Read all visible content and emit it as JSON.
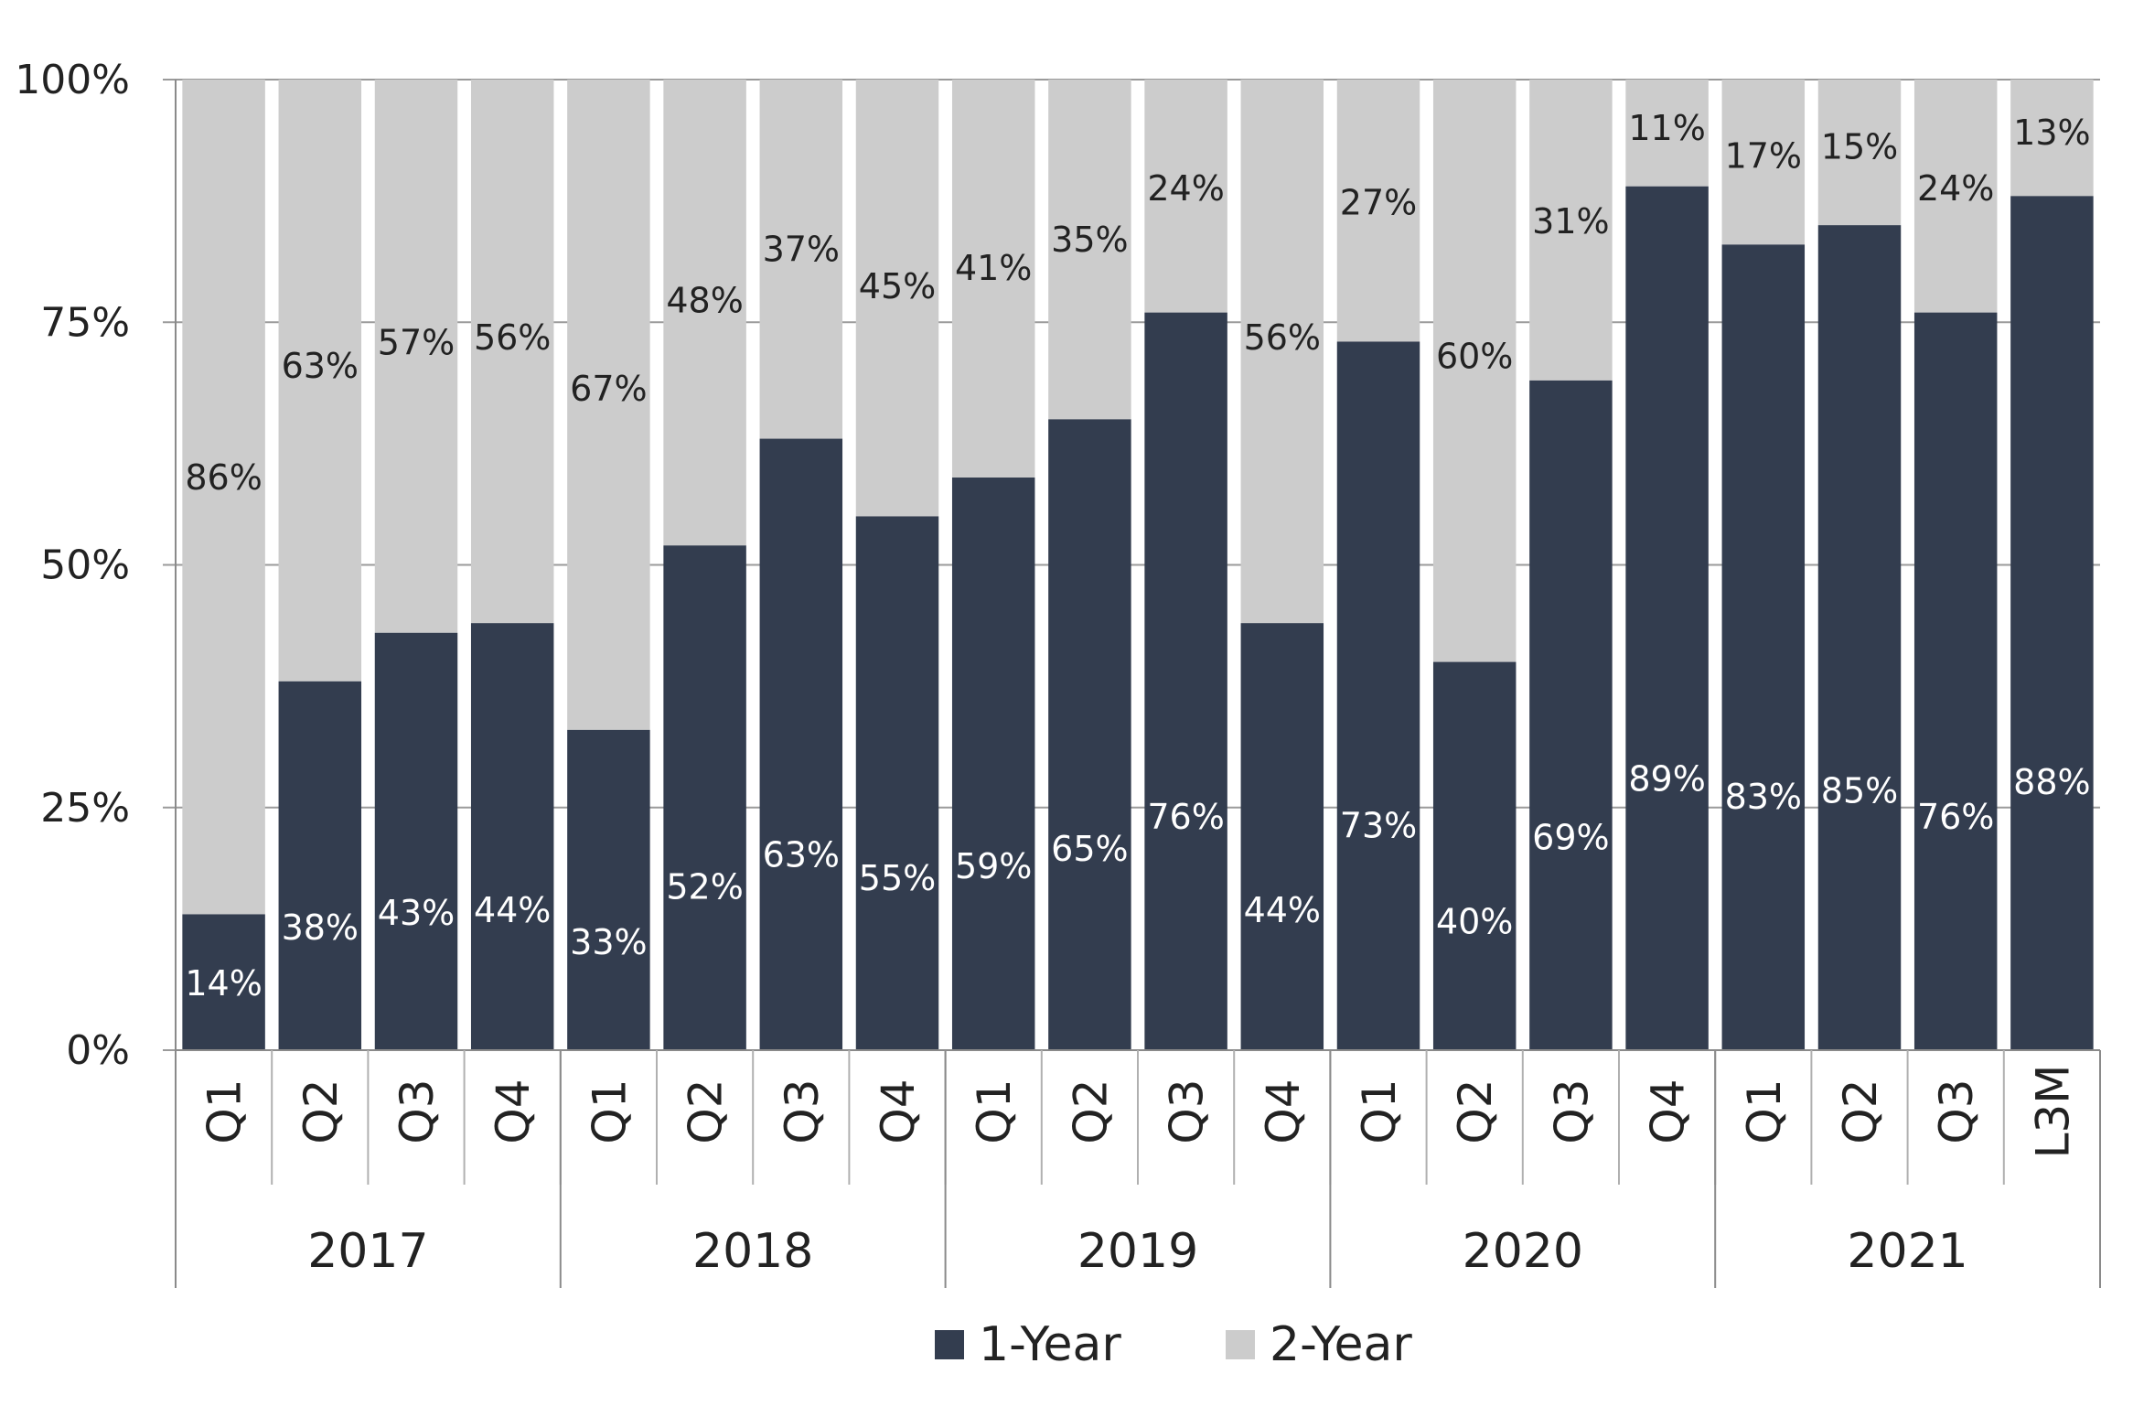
{
  "chart_data": {
    "type": "bar",
    "stacked": true,
    "percent": true,
    "categories": [
      "Q1",
      "Q2",
      "Q3",
      "Q4",
      "Q1",
      "Q2",
      "Q3",
      "Q4",
      "Q1",
      "Q2",
      "Q3",
      "Q4",
      "Q1",
      "Q2",
      "Q3",
      "Q4",
      "Q1",
      "Q2",
      "Q3",
      "L3M"
    ],
    "groups": [
      {
        "label": "2017",
        "count": 4
      },
      {
        "label": "2018",
        "count": 4
      },
      {
        "label": "2019",
        "count": 4
      },
      {
        "label": "2020",
        "count": 4
      },
      {
        "label": "2021",
        "count": 4
      }
    ],
    "series": [
      {
        "name": "1-Year",
        "color": "#333d4f",
        "label_color": "#ffffff",
        "values": [
          14,
          38,
          43,
          44,
          33,
          52,
          63,
          55,
          59,
          65,
          76,
          44,
          73,
          40,
          69,
          89,
          83,
          85,
          76,
          88
        ]
      },
      {
        "name": "2-Year",
        "color": "#cccccc",
        "label_color": "#222222",
        "values": [
          86,
          63,
          57,
          56,
          67,
          48,
          37,
          45,
          41,
          35,
          24,
          56,
          27,
          60,
          31,
          11,
          17,
          15,
          24,
          13
        ]
      }
    ],
    "value_suffix": "%",
    "ylim": [
      0,
      100
    ],
    "yticks": [
      0,
      25,
      50,
      75,
      100
    ],
    "ytick_labels": [
      "0%",
      "25%",
      "50%",
      "75%",
      "100%"
    ],
    "grid": "horizontal",
    "legend": "bottom-center",
    "title": "",
    "xlabel": "",
    "ylabel": ""
  }
}
